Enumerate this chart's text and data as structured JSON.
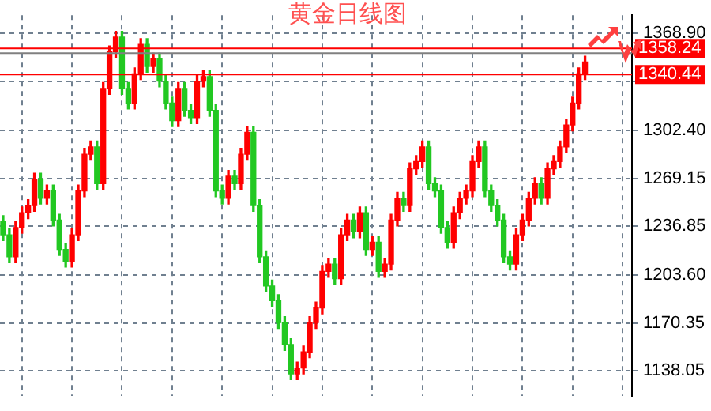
{
  "chart_data": {
    "type": "candlestick",
    "title": "黄金日线图",
    "categories": [
      null,
      null,
      null,
      null,
      null,
      null,
      null,
      null,
      null,
      null,
      null,
      null,
      null,
      null,
      null,
      null,
      null,
      null,
      null,
      null,
      null,
      null,
      null,
      null,
      null,
      null,
      null,
      null,
      null,
      null,
      null,
      null,
      null,
      null,
      null,
      null,
      null,
      null,
      null,
      null,
      null,
      null,
      null,
      null,
      null,
      null,
      null,
      null,
      null,
      null,
      null,
      null,
      null,
      null,
      null,
      null,
      null,
      null,
      null,
      null,
      null,
      null,
      null,
      null,
      null,
      null,
      null,
      null,
      null,
      null,
      null,
      null,
      null,
      null,
      null,
      null,
      null,
      null,
      null,
      null,
      null,
      null,
      null,
      null,
      null,
      null,
      null,
      null,
      null,
      null,
      null,
      null,
      null,
      null
    ],
    "ohlc": [
      [
        1240,
        1244,
        1227,
        1231
      ],
      [
        1231,
        1235,
        1212,
        1216
      ],
      [
        1216,
        1240,
        1212,
        1236
      ],
      [
        1236,
        1250,
        1232,
        1246
      ],
      [
        1246,
        1255,
        1242,
        1251
      ],
      [
        1251,
        1273,
        1247,
        1269
      ],
      [
        1269,
        1273,
        1252,
        1256
      ],
      [
        1256,
        1265,
        1252,
        1261
      ],
      [
        1261,
        1265,
        1237,
        1241
      ],
      [
        1241,
        1245,
        1217,
        1221
      ],
      [
        1221,
        1225,
        1209,
        1213
      ],
      [
        1213,
        1235,
        1209,
        1231
      ],
      [
        1231,
        1265,
        1227,
        1261
      ],
      [
        1261,
        1290,
        1257,
        1286
      ],
      [
        1286,
        1295,
        1282,
        1291
      ],
      [
        1291,
        1295,
        1262,
        1266
      ],
      [
        1266,
        1335,
        1262,
        1331
      ],
      [
        1331,
        1360,
        1327,
        1356
      ],
      [
        1356,
        1370,
        1352,
        1366
      ],
      [
        1366,
        1370,
        1327,
        1331
      ],
      [
        1331,
        1335,
        1317,
        1321
      ],
      [
        1321,
        1345,
        1317,
        1341
      ],
      [
        1341,
        1365,
        1337,
        1361
      ],
      [
        1361,
        1365,
        1342,
        1346
      ],
      [
        1346,
        1355,
        1342,
        1351
      ],
      [
        1351,
        1355,
        1332,
        1336
      ],
      [
        1336,
        1340,
        1317,
        1321
      ],
      [
        1321,
        1325,
        1305,
        1309
      ],
      [
        1309,
        1335,
        1305,
        1331
      ],
      [
        1331,
        1335,
        1312,
        1316
      ],
      [
        1316,
        1320,
        1307,
        1311
      ],
      [
        1311,
        1340,
        1307,
        1336
      ],
      [
        1336,
        1343,
        1332,
        1339
      ],
      [
        1339,
        1343,
        1312,
        1316
      ],
      [
        1316,
        1320,
        1257,
        1261
      ],
      [
        1261,
        1265,
        1252,
        1256
      ],
      [
        1256,
        1275,
        1252,
        1271
      ],
      [
        1271,
        1275,
        1262,
        1266
      ],
      [
        1266,
        1290,
        1262,
        1286
      ],
      [
        1286,
        1305,
        1282,
        1301
      ],
      [
        1301,
        1305,
        1247,
        1251
      ],
      [
        1251,
        1255,
        1212,
        1216
      ],
      [
        1216,
        1220,
        1192,
        1196
      ],
      [
        1196,
        1200,
        1182,
        1186
      ],
      [
        1186,
        1190,
        1167,
        1171
      ],
      [
        1171,
        1175,
        1152,
        1156
      ],
      [
        1156,
        1160,
        1132,
        1136
      ],
      [
        1136,
        1144,
        1132,
        1140
      ],
      [
        1140,
        1155,
        1136,
        1151
      ],
      [
        1151,
        1175,
        1147,
        1171
      ],
      [
        1171,
        1185,
        1167,
        1181
      ],
      [
        1181,
        1210,
        1177,
        1206
      ],
      [
        1206,
        1215,
        1202,
        1211
      ],
      [
        1211,
        1215,
        1197,
        1201
      ],
      [
        1201,
        1235,
        1197,
        1231
      ],
      [
        1231,
        1245,
        1227,
        1241
      ],
      [
        1241,
        1245,
        1229,
        1233
      ],
      [
        1233,
        1250,
        1229,
        1246
      ],
      [
        1246,
        1250,
        1217,
        1221
      ],
      [
        1221,
        1230,
        1217,
        1226
      ],
      [
        1226,
        1230,
        1202,
        1206
      ],
      [
        1206,
        1215,
        1202,
        1211
      ],
      [
        1211,
        1245,
        1207,
        1241
      ],
      [
        1241,
        1260,
        1237,
        1256
      ],
      [
        1256,
        1260,
        1247,
        1251
      ],
      [
        1251,
        1280,
        1247,
        1276
      ],
      [
        1276,
        1285,
        1272,
        1281
      ],
      [
        1281,
        1295,
        1277,
        1291
      ],
      [
        1291,
        1295,
        1262,
        1266
      ],
      [
        1266,
        1270,
        1257,
        1261
      ],
      [
        1261,
        1265,
        1232,
        1236
      ],
      [
        1236,
        1240,
        1222,
        1226
      ],
      [
        1226,
        1250,
        1222,
        1246
      ],
      [
        1246,
        1260,
        1242,
        1256
      ],
      [
        1256,
        1265,
        1252,
        1261
      ],
      [
        1261,
        1285,
        1257,
        1281
      ],
      [
        1281,
        1295,
        1277,
        1291
      ],
      [
        1291,
        1295,
        1257,
        1261
      ],
      [
        1261,
        1265,
        1247,
        1251
      ],
      [
        1251,
        1255,
        1237,
        1241
      ],
      [
        1241,
        1245,
        1212,
        1216
      ],
      [
        1216,
        1220,
        1207,
        1211
      ],
      [
        1211,
        1235,
        1207,
        1231
      ],
      [
        1231,
        1245,
        1227,
        1241
      ],
      [
        1241,
        1260,
        1237,
        1256
      ],
      [
        1256,
        1270,
        1252,
        1266
      ],
      [
        1266,
        1270,
        1252,
        1256
      ],
      [
        1256,
        1280,
        1252,
        1276
      ],
      [
        1276,
        1285,
        1272,
        1281
      ],
      [
        1281,
        1295,
        1277,
        1291
      ],
      [
        1291,
        1310,
        1287,
        1306
      ],
      [
        1306,
        1325,
        1302,
        1321
      ],
      [
        1321,
        1345,
        1317,
        1341
      ],
      [
        1341,
        1353,
        1337,
        1349
      ]
    ],
    "ylim": [
      1121,
      1381
    ],
    "yticks": [
      {
        "value": 1368.9,
        "label": "1368.90"
      },
      {
        "value": 1335.65,
        "label": null
      },
      {
        "value": 1302.4,
        "label": "1302.40"
      },
      {
        "value": 1269.15,
        "label": "1269.15"
      },
      {
        "value": 1236.85,
        "label": "1236.85"
      },
      {
        "value": 1203.6,
        "label": "1203.60"
      },
      {
        "value": 1170.35,
        "label": "1170.35"
      },
      {
        "value": 1138.05,
        "label": "1138.05"
      }
    ],
    "ref_lines": [
      {
        "axis": "y",
        "value": 1358.24,
        "label": "1358.24",
        "color": "#ff0000"
      },
      {
        "axis": "y",
        "value": 1355.08,
        "color": "#808080"
      },
      {
        "axis": "y",
        "value": 1340.44,
        "label": "1340.44",
        "color": "#ff0000"
      }
    ],
    "grid": true,
    "tick_labels": "y",
    "legend": false
  }
}
